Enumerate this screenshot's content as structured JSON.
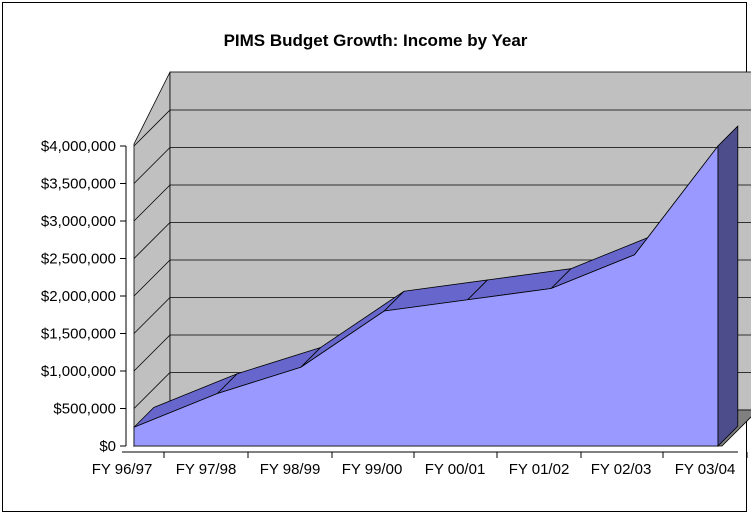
{
  "chart_data": {
    "type": "area",
    "title": "PIMS Budget Growth: Income by Year",
    "categories": [
      "FY 96/97",
      "FY 97/98",
      "FY 98/99",
      "FY 99/00",
      "FY 00/01",
      "FY 01/02",
      "FY 02/03",
      "FY 03/04"
    ],
    "values": [
      250000,
      700000,
      1050000,
      1800000,
      1950000,
      2100000,
      2550000,
      4000000
    ],
    "y_tick_labels": [
      "$0",
      "$500,000",
      "$1,000,000",
      "$1,500,000",
      "$2,000,000",
      "$2,500,000",
      "$3,000,000",
      "$3,500,000",
      "$4,000,000"
    ],
    "ylim": [
      0,
      4000000
    ],
    "grid": true,
    "legend": "none",
    "three_d": true,
    "colors": {
      "area_front": "#9999ff",
      "area_top": "#6666cc",
      "area_side": "#4d4d8c",
      "wall": "#c0c0c0",
      "floor": "#808080",
      "gridline": "#000000"
    }
  }
}
